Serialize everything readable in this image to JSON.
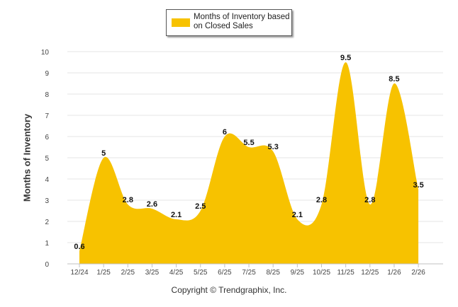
{
  "chart_data": {
    "type": "area",
    "title": "",
    "legend": {
      "label": "Months of Inventory based on Closed Sales",
      "color": "#f7c200",
      "placement": "top-center"
    },
    "categories": [
      "12/24",
      "1/25",
      "2/25",
      "3/25",
      "4/25",
      "5/25",
      "6/25",
      "7/25",
      "8/25",
      "9/25",
      "10/25",
      "11/25",
      "12/25",
      "1/26",
      "2/26"
    ],
    "series": [
      {
        "name": "Months of Inventory based on Closed Sales",
        "values": [
          0.6,
          5,
          2.8,
          2.6,
          2.1,
          2.5,
          6,
          5.5,
          5.3,
          2.1,
          2.8,
          9.5,
          2.8,
          8.5,
          3.5
        ],
        "labels": [
          "0.6",
          "5",
          "2.8",
          "2.6",
          "2.1",
          "2.5",
          "6",
          "5.5",
          "5.3",
          "2.1",
          "2.8",
          "9.5",
          "2.8",
          "8.5",
          "3.5"
        ]
      }
    ],
    "xlabel": "",
    "ylabel": "Months of Inventory",
    "ylim": [
      0,
      10
    ],
    "yticks": [
      0,
      1,
      2,
      3,
      4,
      5,
      6,
      7,
      8,
      9,
      10
    ],
    "grid": true,
    "area_color": "#f7c200"
  },
  "footer": {
    "copyright": "Copyright © Trendgraphix, Inc."
  }
}
